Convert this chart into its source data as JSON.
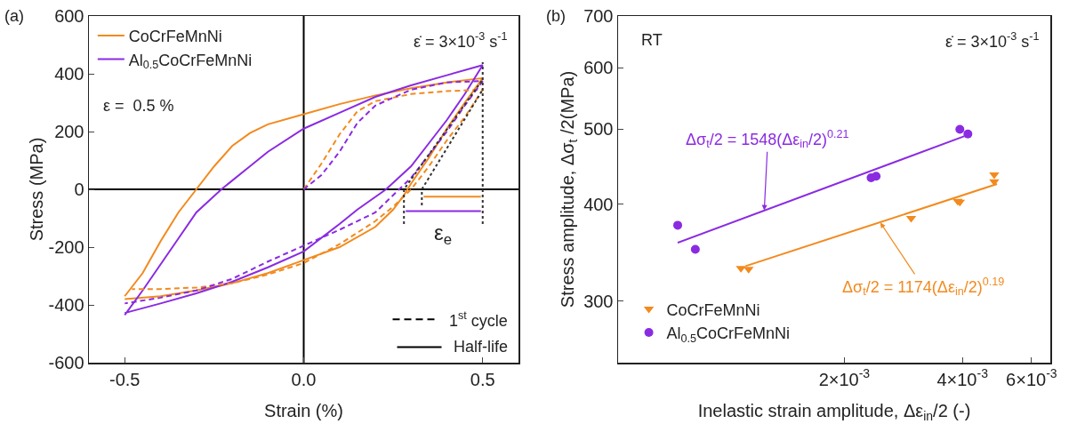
{
  "chart_data": [
    {
      "type": "line",
      "xlabel": "Strain (%)",
      "ylabel": "Stress (MPa)",
      "xlim": [
        -0.6,
        0.6
      ],
      "xticks": [
        -0.5,
        {
          "value": 0,
          "label": "0.0"
        },
        0.5
      ],
      "ylim": [
        -600,
        600
      ],
      "yticks": [
        -600,
        -400,
        -200,
        0,
        200,
        400,
        600
      ],
      "grid": false,
      "legend": "top left",
      "annotations": [
        "(a)",
        "ε̇ = 3×10$^{-3}$ s$^{-1}$",
        "ε =  0.5 %",
        "ε$_{e}$",
        "1$^{st}$ cycle",
        "Half-life"
      ],
      "series": [
        {
          "color": "#000000",
          "line_style": "solid",
          "x": [
            -0.6,
            0.6
          ],
          "values": [
            0,
            0
          ]
        },
        {
          "color": "#000000",
          "line_style": "solid",
          "x": [
            0,
            0
          ],
          "values": [
            -600,
            600
          ]
        },
        {
          "name": "CoCrFeMnNi",
          "color": "#f28a1e",
          "line_style": "solid",
          "x": [
            -0.5,
            -0.45,
            -0.4,
            -0.35,
            -0.3,
            -0.25,
            -0.2,
            -0.15,
            -0.1,
            0,
            0.1,
            0.2,
            0.3,
            0.4,
            0.5,
            0.45,
            0.4,
            0.35,
            0.3,
            0.28,
            0.25,
            0.2,
            0.1,
            0,
            -0.1,
            -0.2,
            -0.3,
            -0.4,
            -0.5
          ],
          "values": [
            -370,
            -290,
            -180,
            -80,
            0,
            80,
            150,
            195,
            225,
            260,
            295,
            325,
            350,
            370,
            385,
            300,
            210,
            110,
            20,
            -20,
            -70,
            -130,
            -200,
            -245,
            -290,
            -325,
            -350,
            -370,
            -380
          ]
        },
        {
          "name": "Al$_{0.5}$CoCrFeMnNi",
          "color": "#8a2be2",
          "line_style": "solid",
          "x": [
            -0.5,
            -0.45,
            -0.4,
            -0.35,
            -0.3,
            -0.23,
            -0.15,
            -0.1,
            0,
            0.1,
            0.2,
            0.3,
            0.4,
            0.5,
            0.45,
            0.4,
            0.35,
            0.3,
            0.23,
            0.15,
            0.1,
            0,
            -0.1,
            -0.2,
            -0.3,
            -0.4,
            -0.5
          ],
          "values": [
            -435,
            -350,
            -260,
            -170,
            -80,
            0,
            80,
            130,
            210,
            265,
            320,
            360,
            395,
            430,
            330,
            240,
            160,
            80,
            0,
            -70,
            -120,
            -215,
            -270,
            -320,
            -360,
            -395,
            -428
          ]
        },
        {
          "color": "#f28a1e",
          "line_style": "dashed",
          "x": [
            0,
            0.05,
            0.1,
            0.15,
            0.2,
            0.3,
            0.4,
            0.5,
            0.45,
            0.4,
            0.35,
            0.3,
            0.25,
            0.2,
            0.1,
            0,
            -0.1,
            -0.2,
            -0.3,
            -0.4,
            -0.48
          ],
          "values": [
            0,
            90,
            190,
            270,
            305,
            330,
            340,
            345,
            250,
            170,
            80,
            0,
            -60,
            -110,
            -190,
            -255,
            -295,
            -325,
            -340,
            -345,
            -345
          ]
        },
        {
          "color": "#8a2be2",
          "line_style": "dashed",
          "x": [
            0,
            0.05,
            0.1,
            0.15,
            0.2,
            0.3,
            0.4,
            0.5,
            0.45,
            0.4,
            0.35,
            0.3,
            0.25,
            0.2,
            0.1,
            0,
            -0.1,
            -0.2,
            -0.3,
            -0.4,
            -0.5
          ],
          "values": [
            0,
            50,
            130,
            230,
            290,
            345,
            370,
            375,
            290,
            200,
            120,
            40,
            -20,
            -80,
            -140,
            -195,
            -250,
            -310,
            -350,
            -375,
            -395
          ]
        },
        {
          "color": "#333333",
          "line_style": "dotted",
          "x": [
            0.28,
            0.28,
            0.5
          ],
          "values": [
            -120,
            0,
            380
          ]
        },
        {
          "color": "#333333",
          "line_style": "dotted",
          "x": [
            0.33,
            0.33,
            0.5
          ],
          "values": [
            -55,
            0,
            345
          ]
        },
        {
          "color": "#333333",
          "line_style": "dotted",
          "x": [
            0.5,
            0.5
          ],
          "values": [
            -120,
            440
          ]
        },
        {
          "color": "#f28a1e",
          "line_style": "solid",
          "x": [
            0.335,
            0.495
          ],
          "values": [
            -25,
            -25
          ]
        },
        {
          "color": "#8a2be2",
          "line_style": "solid",
          "x": [
            0.285,
            0.495
          ],
          "values": [
            -75,
            -75
          ]
        }
      ]
    },
    {
      "type": "scatter",
      "xlabel": "Inelastic strain amplitude, Δε$_{in}$/2 (-)",
      "ylabel": "Stress amplitude, Δσ$_{t}$ /2(MPa)",
      "log": "xy",
      "xlim": [
        0.00053,
        0.0067
      ],
      "xticks": [
        {
          "value": 0.002,
          "label": "2×10$^{-3}$"
        },
        {
          "value": 0.004,
          "label": "4×10$^{-3}$"
        },
        {
          "value": 0.006,
          "label": "6×10$^{-3}$"
        }
      ],
      "ylim": [
        250,
        700
      ],
      "yticks": [
        300,
        400,
        500,
        600,
        700
      ],
      "grid": false,
      "legend": "bottom left",
      "annotations": [
        "(b)",
        "RT",
        "ε̇ = 3×10$^{-3}$ s$^{-1}$",
        {
          "text": "Δσ$_{t}$/2 = 1548(Δε$_{in}$/2)$^{0.21}$",
          "x": 0.00125,
          "y": 393
        },
        {
          "text": "Δσ$_{t}$/2 = 1174(Δε$_{in}$/2)$^{0.19}$",
          "x": 0.00247,
          "y": 379
        }
      ],
      "series": [
        {
          "name": "CoCrFeMnNi",
          "color": "#f28a1e",
          "marker": "triangle",
          "x": [
            0.00109,
            0.00114,
            0.00296,
            0.00389,
            0.00394,
            0.00482,
            0.00482
          ],
          "values": [
            331,
            330,
            384,
            404,
            403,
            437,
            428
          ]
        },
        {
          "name": "Al$_{0.5}$CoCrFeMnNi",
          "color": "#8a2be2",
          "marker": "circle",
          "x": [
            0.000752,
            0.000834,
            0.00234,
            0.00241,
            0.00394,
            0.00413
          ],
          "values": [
            376,
            350,
            433,
            435,
            500,
            493
          ]
        },
        {
          "type": "line",
          "color": "#f28a1e",
          "marker": "none",
          "x": [
            0.00112,
            0.0049
          ],
          "values": [
            333,
            425
          ]
        },
        {
          "type": "line",
          "color": "#8a2be2",
          "marker": "none",
          "x": [
            0.000752,
            0.00405
          ],
          "values": [
            357,
            490
          ]
        }
      ]
    }
  ]
}
